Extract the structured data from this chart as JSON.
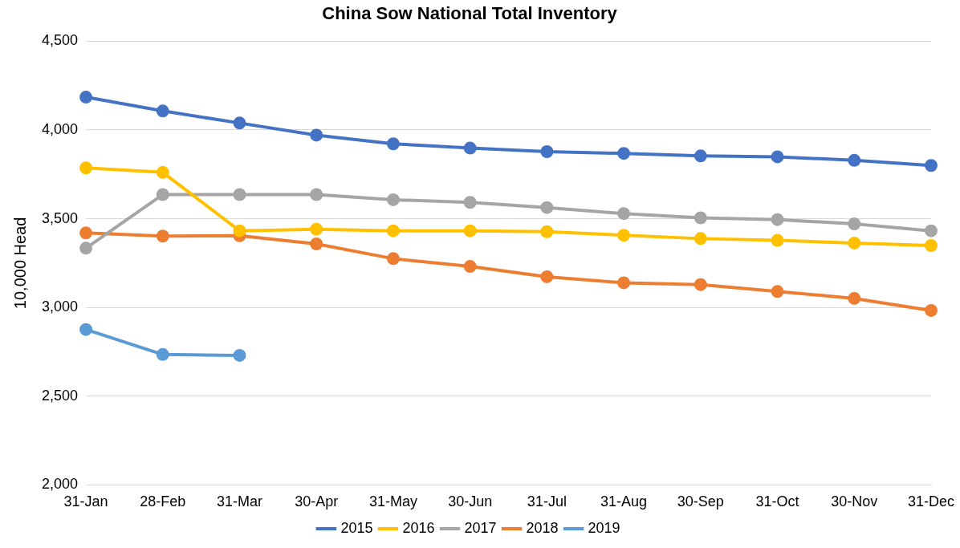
{
  "chart_data": {
    "type": "line",
    "title": "China Sow National Total Inventory",
    "ylabel": "10,000 Head",
    "categories": [
      "31-Jan",
      "28-Feb",
      "31-Mar",
      "30-Apr",
      "31-May",
      "30-Jun",
      "31-Jul",
      "31-Aug",
      "30-Sep",
      "31-Oct",
      "30-Nov",
      "31-Dec"
    ],
    "series": [
      {
        "name": "2015",
        "color": "#4472c4",
        "values": [
          4185,
          4107,
          4039,
          3971,
          3922,
          3898,
          3878,
          3868,
          3854,
          3849,
          3829,
          3800
        ]
      },
      {
        "name": "2016",
        "color": "#ffc000",
        "values": [
          3786,
          3761,
          3432,
          3441,
          3432,
          3432,
          3427,
          3407,
          3388,
          3378,
          3363,
          3349
        ]
      },
      {
        "name": "2017",
        "color": "#a5a5a5",
        "values": [
          3334,
          3636,
          3636,
          3636,
          3607,
          3592,
          3563,
          3529,
          3505,
          3495,
          3471,
          3432
        ]
      },
      {
        "name": "2018",
        "color": "#ed7d31",
        "values": [
          3420,
          3402,
          3404,
          3358,
          3275,
          3231,
          3173,
          3139,
          3129,
          3090,
          3051,
          2983
        ]
      },
      {
        "name": "2019",
        "color": "#5b9bd5",
        "values": [
          2876,
          2735,
          2730,
          null,
          null,
          null,
          null,
          null,
          null,
          null,
          null,
          null
        ]
      }
    ],
    "ylim": [
      2000,
      4500
    ],
    "yticks": [
      {
        "value": 2000,
        "label": "2,000"
      },
      {
        "value": 2500,
        "label": "2,500"
      },
      {
        "value": 3000,
        "label": "3,000"
      },
      {
        "value": 3500,
        "label": "3,500"
      },
      {
        "value": 4000,
        "label": "4,000"
      },
      {
        "value": 4500,
        "label": "4,500"
      }
    ],
    "grid": "y",
    "legend": "bottom",
    "marker": "circle",
    "line_style": "solid"
  }
}
